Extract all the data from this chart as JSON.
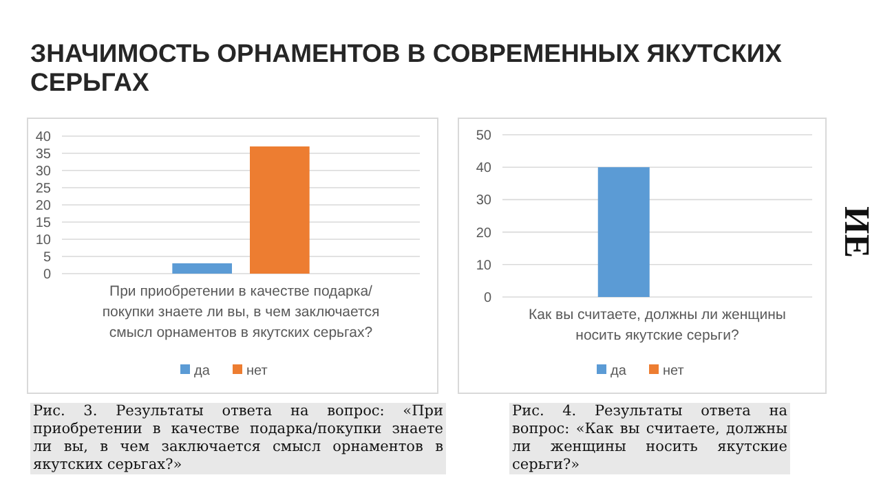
{
  "chart_data": [
    {
      "type": "bar",
      "title": "ЗНАЧИМОСТЬ ОРНАМЕНТОВ В СОВРЕМЕННЫХ ЯКУТСКИХ СЕРЬГАХ",
      "categories": [
        "При приобретении в качестве подарка/покупки знаете ли вы, в чем заключается смысл орнаментов в якутских серьгах?"
      ],
      "series": [
        {
          "name": "да",
          "color": "#5b9bd5",
          "values": [
            3
          ]
        },
        {
          "name": "нет",
          "color": "#ed7d31",
          "values": [
            37
          ]
        }
      ],
      "ylim": [
        0,
        40
      ],
      "yticks": [
        0,
        5,
        10,
        15,
        20,
        25,
        30,
        35,
        40
      ],
      "grid": "y",
      "legend": "bottom",
      "annotations": [
        "Рис. 3. Результаты ответа на вопрос: «При приобретении в качестве подарка/покупки знаете ли вы, в чем заключается смысл орнаментов в якутских серьгах?»"
      ]
    },
    {
      "type": "bar",
      "categories": [
        "Как вы считаете, должны ли женщины носить якутские серьги?"
      ],
      "series": [
        {
          "name": "да",
          "color": "#5b9bd5",
          "values": [
            40
          ]
        },
        {
          "name": "нет",
          "color": "#ed7d31",
          "values": [
            0
          ]
        }
      ],
      "ylim": [
        0,
        50
      ],
      "yticks": [
        0,
        10,
        20,
        30,
        40,
        50
      ],
      "grid": "y",
      "legend": "bottom",
      "annotations": [
        "Рис. 4. Результаты ответа на вопрос: «Как вы считаете, должны ли женщины носить якутские серьги?»",
        "ИЕ"
      ]
    }
  ]
}
